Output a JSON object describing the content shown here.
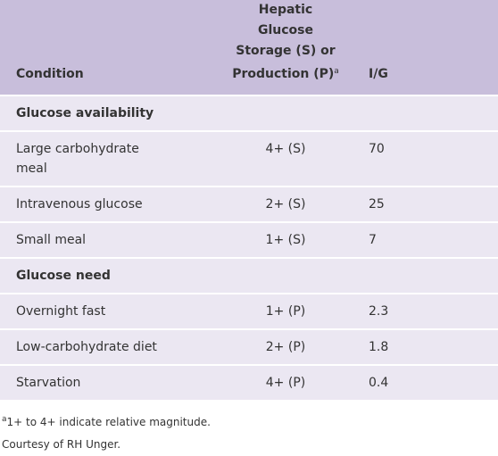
{
  "table": {
    "header": [
      {
        "text": "Condition"
      },
      {
        "text": "Hepatic Glucose Storage (S) or Production (P)",
        "superscript": "a"
      },
      {
        "text": "I/G"
      }
    ],
    "sections": [
      {
        "title": "Glucose availability",
        "rows": [
          [
            "Large carbohydrate meal",
            "4+ (S)",
            "70"
          ],
          [
            "Intravenous glucose",
            "2+ (S)",
            "25"
          ],
          [
            "Small meal",
            "1+ (S)",
            "7"
          ]
        ]
      },
      {
        "title": "Glucose need",
        "rows": [
          [
            "Overnight fast",
            "1+ (P)",
            "2.3"
          ],
          [
            "Low-carbohydrate diet",
            "2+ (P)",
            "1.8"
          ],
          [
            "Starvation",
            "4+ (P)",
            "0.4"
          ]
        ]
      }
    ]
  },
  "footnotes": [
    {
      "marker": "a",
      "text": "1+ to 4+ indicate relative magnitude."
    },
    {
      "text": "Courtesy of RH Unger."
    }
  ]
}
